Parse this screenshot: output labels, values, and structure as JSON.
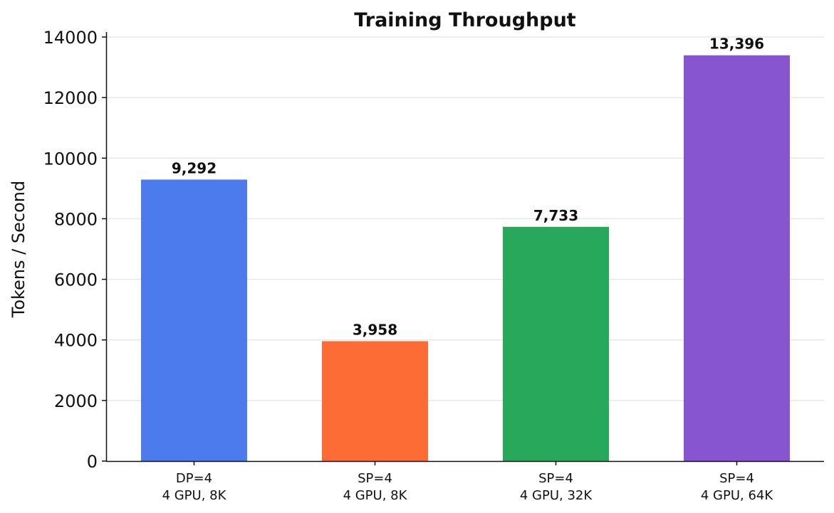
{
  "chart_data": {
    "type": "bar",
    "title": "Training Throughput",
    "xlabel": "",
    "ylabel": "Tokens / Second",
    "categories": [
      [
        "DP=4",
        "4 GPU, 8K"
      ],
      [
        "SP=4",
        "4 GPU, 8K"
      ],
      [
        "SP=4",
        "4 GPU, 32K"
      ],
      [
        "SP=4",
        "4 GPU, 64K"
      ]
    ],
    "values": [
      9292,
      3958,
      7733,
      13396
    ],
    "data_labels": [
      "9,292",
      "3,958",
      "7,733",
      "13,396"
    ],
    "colors": [
      "#4b7bec",
      "#fd6c35",
      "#27a85a",
      "#8855d0"
    ],
    "ylim": [
      0,
      14000
    ],
    "yticks": [
      "0",
      "2000",
      "4000",
      "6000",
      "8000",
      "10000",
      "12000",
      "14000"
    ],
    "grid": "horizontal",
    "legend": "none"
  }
}
